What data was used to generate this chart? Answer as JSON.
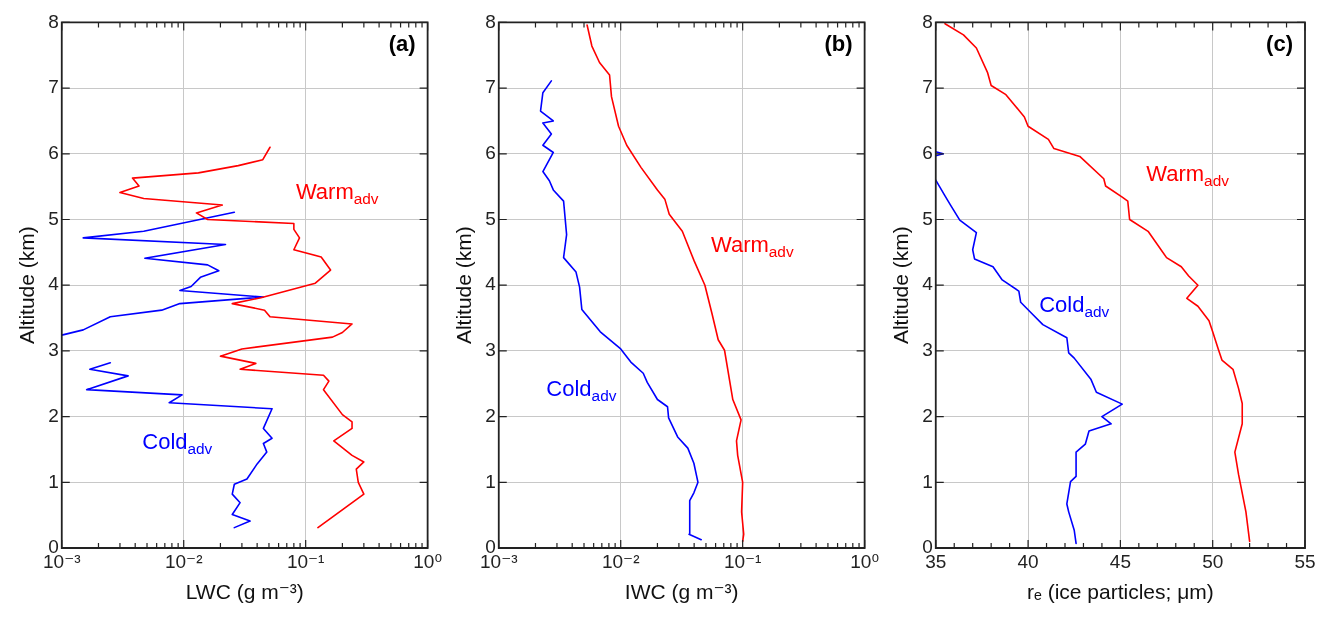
{
  "chart_data": [
    {
      "type": "line",
      "annotations": [
        "(a)"
      ],
      "xlabel": "LWC (g m⁻³)",
      "ylabel": "Altitude (km)",
      "log": "x",
      "grid": true,
      "legend": false,
      "marker": "none",
      "line_style": "solid",
      "xlim": [
        0.001,
        1
      ],
      "xticks": [
        {
          "value": 0.001,
          "label": "10⁻³"
        },
        {
          "value": 0.002,
          "label": null
        },
        {
          "value": 0.003,
          "label": null
        },
        {
          "value": 0.004,
          "label": null
        },
        {
          "value": 0.005,
          "label": null
        },
        {
          "value": 0.006,
          "label": null
        },
        {
          "value": 0.007,
          "label": null
        },
        {
          "value": 0.008,
          "label": null
        },
        {
          "value": 0.009,
          "label": null
        },
        {
          "value": 0.01,
          "label": "10⁻²"
        },
        {
          "value": 0.02,
          "label": null
        },
        {
          "value": 0.03,
          "label": null
        },
        {
          "value": 0.04,
          "label": null
        },
        {
          "value": 0.05,
          "label": null
        },
        {
          "value": 0.06,
          "label": null
        },
        {
          "value": 0.07,
          "label": null
        },
        {
          "value": 0.08,
          "label": null
        },
        {
          "value": 0.09,
          "label": null
        },
        {
          "value": 0.1,
          "label": "10⁻¹"
        },
        {
          "value": 0.2,
          "label": null
        },
        {
          "value": 0.3,
          "label": null
        },
        {
          "value": 0.4,
          "label": null
        },
        {
          "value": 0.5,
          "label": null
        },
        {
          "value": 0.6,
          "label": null
        },
        {
          "value": 0.7,
          "label": null
        },
        {
          "value": 0.8,
          "label": null
        },
        {
          "value": 0.9,
          "label": null
        },
        {
          "value": 1,
          "label": "10⁰"
        }
      ],
      "ylim": [
        0,
        8
      ],
      "yticks": [
        0,
        1,
        2,
        3,
        4,
        5,
        6,
        7,
        8
      ],
      "series": [
        {
          "name": "Warm$_{adv}$",
          "color": "#ff0000",
          "x": [
            0.126,
            0.3,
            0.27,
            0.26,
            0.3,
            0.24,
            0.17,
            0.24,
            0.24,
            0.2,
            0.14,
            0.155,
            0.14,
            0.029,
            0.039,
            0.02,
            0.03,
            0.166,
            0.2,
            0.24,
            0.051,
            0.046,
            0.025,
            0.043,
            0.12,
            0.16,
            0.134,
            0.08,
            0.089,
            0.08,
            0.08,
            0.0157,
            0.0127,
            0.0207,
            0.0047,
            0.003,
            0.0043,
            0.0038,
            0.0132,
            0.028,
            0.0445,
            0.051
          ],
          "values": [
            0.31,
            0.82,
            1.0,
            1.2,
            1.31,
            1.41,
            1.63,
            1.82,
            1.92,
            2.03,
            2.41,
            2.54,
            2.63,
            2.72,
            2.81,
            2.92,
            3.03,
            3.21,
            3.28,
            3.41,
            3.52,
            3.62,
            3.72,
            3.81,
            4.03,
            4.23,
            4.43,
            4.54,
            4.72,
            4.85,
            4.94,
            5.0,
            5.1,
            5.22,
            5.32,
            5.41,
            5.51,
            5.63,
            5.71,
            5.82,
            5.91,
            6.1
          ]
        },
        {
          "name": "Cold$_{adv}$",
          "color": "#0000ff",
          "x": [
            0.026,
            0.035,
            0.025,
            0.029,
            0.025,
            0.026,
            0.033,
            0.04,
            0.048,
            0.045,
            0.053,
            0.045,
            0.053,
            0.0076,
            0.0097,
            0.0016,
            0.0035,
            0.0017,
            0.0025,
            null,
            0.001,
            0.0015,
            0.0025,
            0.0066,
            0.0093,
            0.045,
            0.0093,
            0.0115,
            0.0137,
            0.0194,
            0.0157,
            0.0048,
            0.022,
            0.0015,
            0.0047,
            0.026
          ],
          "values": [
            0.31,
            0.41,
            0.51,
            0.69,
            0.82,
            0.97,
            1.05,
            1.28,
            1.46,
            1.59,
            1.67,
            1.82,
            2.12,
            2.21,
            2.33,
            2.41,
            2.62,
            2.72,
            2.82,
            null,
            3.24,
            3.32,
            3.52,
            3.62,
            3.72,
            3.82,
            3.92,
            3.98,
            4.12,
            4.22,
            4.31,
            4.41,
            4.62,
            4.72,
            4.82,
            5.11
          ]
        }
      ]
    },
    {
      "type": "line",
      "annotations": [
        "(b)"
      ],
      "xlabel": "IWC (g m⁻³)",
      "ylabel": "Altitude (km)",
      "log": "x",
      "grid": true,
      "legend": false,
      "marker": "none",
      "line_style": "solid",
      "xlim": [
        0.001,
        1
      ],
      "xticks": [
        {
          "value": 0.001,
          "label": "10⁻³"
        },
        {
          "value": 0.002,
          "label": null
        },
        {
          "value": 0.003,
          "label": null
        },
        {
          "value": 0.004,
          "label": null
        },
        {
          "value": 0.005,
          "label": null
        },
        {
          "value": 0.006,
          "label": null
        },
        {
          "value": 0.007,
          "label": null
        },
        {
          "value": 0.008,
          "label": null
        },
        {
          "value": 0.009,
          "label": null
        },
        {
          "value": 0.01,
          "label": "10⁻²"
        },
        {
          "value": 0.02,
          "label": null
        },
        {
          "value": 0.03,
          "label": null
        },
        {
          "value": 0.04,
          "label": null
        },
        {
          "value": 0.05,
          "label": null
        },
        {
          "value": 0.06,
          "label": null
        },
        {
          "value": 0.07,
          "label": null
        },
        {
          "value": 0.08,
          "label": null
        },
        {
          "value": 0.09,
          "label": null
        },
        {
          "value": 0.1,
          "label": "10⁻¹"
        },
        {
          "value": 0.2,
          "label": null
        },
        {
          "value": 0.3,
          "label": null
        },
        {
          "value": 0.4,
          "label": null
        },
        {
          "value": 0.5,
          "label": null
        },
        {
          "value": 0.6,
          "label": null
        },
        {
          "value": 0.7,
          "label": null
        },
        {
          "value": 0.8,
          "label": null
        },
        {
          "value": 0.9,
          "label": null
        },
        {
          "value": 1,
          "label": "10⁰"
        }
      ],
      "ylim": [
        0,
        8
      ],
      "yticks": [
        0,
        1,
        2,
        3,
        4,
        5,
        6,
        7,
        8
      ],
      "series": [
        {
          "name": "Warm$_{adv}$",
          "color": "#ff0000",
          "x": [
            0.1,
            0.102,
            0.098,
            0.1,
            0.091,
            0.089,
            0.097,
            0.083,
            0.071,
            0.063,
            0.056,
            0.049,
            0.04,
            0.032,
            0.025,
            0.023,
            0.02,
            0.0147,
            0.0112,
            0.0096,
            0.0084,
            0.0081,
            0.0067,
            0.0058,
            0.0053
          ],
          "values": [
            0.1,
            0.21,
            0.55,
            1.0,
            1.41,
            1.63,
            1.95,
            2.26,
            3.01,
            3.17,
            3.57,
            4.0,
            4.37,
            4.82,
            5.08,
            5.31,
            5.45,
            5.79,
            6.13,
            6.42,
            6.87,
            7.2,
            7.39,
            7.64,
            7.96
          ]
        },
        {
          "name": "Cold$_{adv}$",
          "color": "#0000ff",
          "x": [
            0.0457,
            0.0363,
            0.0368,
            0.0398,
            0.043,
            0.0398,
            0.0355,
            0.0293,
            0.0247,
            0.0242,
            0.02,
            0.0165,
            0.0153,
            0.0121,
            0.01,
            0.0068,
            0.0048,
            0.0046,
            0.0043,
            0.0034,
            0.0036,
            0.0034,
            0.0028,
            0.0026,
            0.0023,
            0.0028,
            0.0023,
            0.0027,
            0.0023,
            0.0028,
            0.0022,
            0.0023,
            0.0027
          ],
          "values": [
            0.125,
            0.21,
            0.72,
            0.84,
            1.0,
            1.29,
            1.52,
            1.69,
            1.98,
            2.15,
            2.26,
            2.52,
            2.66,
            2.83,
            3.03,
            3.29,
            3.63,
            3.97,
            4.2,
            4.42,
            4.77,
            5.28,
            5.45,
            5.59,
            5.73,
            6.02,
            6.13,
            6.3,
            6.47,
            6.5,
            6.65,
            6.93,
            7.11
          ]
        }
      ]
    },
    {
      "type": "line",
      "annotations": [
        "(c)"
      ],
      "xlabel": "rₑ (ice particles; μm)",
      "ylabel": "Altitude (km)",
      "grid": true,
      "legend": false,
      "marker": "none",
      "line_style": "solid",
      "xlim": [
        35,
        55
      ],
      "xticks": [
        35,
        {
          "value": 36,
          "label": null
        },
        {
          "value": 37,
          "label": null
        },
        {
          "value": 38,
          "label": null
        },
        {
          "value": 39,
          "label": null
        },
        40,
        {
          "value": 41,
          "label": null
        },
        {
          "value": 42,
          "label": null
        },
        {
          "value": 43,
          "label": null
        },
        {
          "value": 44,
          "label": null
        },
        45,
        {
          "value": 46,
          "label": null
        },
        {
          "value": 47,
          "label": null
        },
        {
          "value": 48,
          "label": null
        },
        {
          "value": 49,
          "label": null
        },
        50,
        {
          "value": 51,
          "label": null
        },
        {
          "value": 52,
          "label": null
        },
        {
          "value": 53,
          "label": null
        },
        {
          "value": 54,
          "label": null
        },
        55
      ],
      "ylim": [
        0,
        8
      ],
      "yticks": [
        0,
        1,
        2,
        3,
        4,
        5,
        6,
        7,
        8
      ],
      "series": [
        {
          "name": "Warm$_{adv}$",
          "color": "#ff0000",
          "x": [
            52.0,
            51.8,
            51.4,
            51.2,
            51.6,
            51.6,
            51.4,
            51.1,
            50.5,
            50.3,
            50.0,
            49.8,
            49.2,
            48.6,
            49.2,
            48.7,
            48.3,
            47.5,
            46.5,
            45.5,
            45.4,
            45.1,
            44.2,
            44.1,
            42.8,
            41.4,
            41.1,
            40.0,
            39.8,
            38.8,
            38.0,
            37.8,
            37.2,
            36.5,
            35.5
          ],
          "values": [
            0.1,
            0.55,
            1.12,
            1.46,
            1.89,
            2.2,
            2.43,
            2.72,
            2.86,
            3.03,
            3.29,
            3.46,
            3.68,
            3.8,
            4.0,
            4.14,
            4.28,
            4.42,
            4.82,
            5.0,
            5.28,
            5.34,
            5.51,
            5.62,
            5.96,
            6.08,
            6.22,
            6.42,
            6.56,
            6.9,
            7.04,
            7.24,
            7.61,
            7.81,
            7.98
          ]
        },
        {
          "name": "Cold$_{adv}$",
          "color": "#0000ff",
          "x": [
            42.6,
            42.5,
            42.2,
            42.1,
            42.3,
            42.6,
            42.6,
            43.1,
            43.3,
            44.5,
            44.0,
            45.1,
            43.7,
            43.4,
            42.5,
            42.2,
            42.1,
            40.8,
            40.2,
            39.6,
            39.5,
            38.6,
            38.1,
            37.1,
            37.0,
            37.2,
            36.3,
            35.8,
            35.5,
            35.0,
            null,
            35.0,
            35.4,
            35.0
          ],
          "values": [
            0.07,
            0.27,
            0.55,
            0.67,
            1.01,
            1.09,
            1.46,
            1.58,
            1.78,
            1.89,
            2.0,
            2.19,
            2.37,
            2.57,
            2.89,
            2.97,
            3.2,
            3.4,
            3.57,
            3.74,
            3.91,
            4.08,
            4.28,
            4.4,
            4.54,
            4.8,
            4.99,
            5.22,
            5.36,
            5.6,
            null,
            5.97,
            6.0,
            6.03
          ]
        }
      ]
    }
  ]
}
